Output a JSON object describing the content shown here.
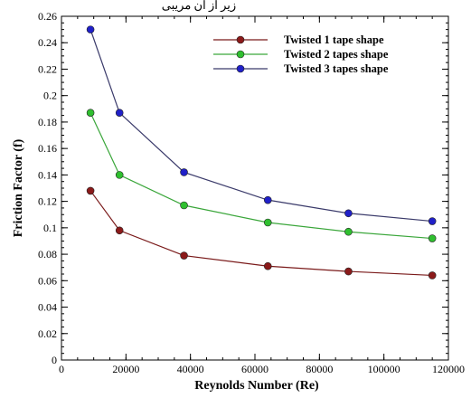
{
  "top_text": "زیر از آن مریبی",
  "chart_data": {
    "type": "line",
    "title": "",
    "xlabel": "Reynolds Number (Re)",
    "ylabel": "Friction Factor (f)",
    "xlim": [
      0,
      120000
    ],
    "ylim": [
      0,
      0.26
    ],
    "x_ticks": [
      0,
      20000,
      40000,
      60000,
      80000,
      100000,
      120000
    ],
    "y_ticks": [
      0,
      0.02,
      0.04,
      0.06,
      0.08,
      0.1,
      0.12,
      0.14,
      0.16,
      0.18,
      0.2,
      0.22,
      0.24,
      0.26
    ],
    "x_tick_labels": [
      "0",
      "20000",
      "40000",
      "60000",
      "80000",
      "100000",
      "120000"
    ],
    "y_tick_labels": [
      "0",
      "0.02",
      "0.04",
      "0.06",
      "0.08",
      "0.1",
      "0.12",
      "0.14",
      "0.16",
      "0.18",
      "0.2",
      "0.22",
      "0.24",
      "0.26"
    ],
    "grid": false,
    "legend_position": "top-right",
    "x": [
      9000,
      18000,
      38000,
      64000,
      89000,
      115000
    ],
    "series": [
      {
        "name": "Twisted 1 tape shape",
        "marker_color": "#8b1a1a",
        "line_color": "#7a1a1a",
        "values": [
          0.128,
          0.098,
          0.079,
          0.071,
          0.067,
          0.064
        ]
      },
      {
        "name": "Twisted 2 tapes shape",
        "marker_color": "#2fbf2f",
        "line_color": "#3aa63a",
        "values": [
          0.187,
          0.14,
          0.117,
          0.104,
          0.097,
          0.092
        ]
      },
      {
        "name": "Twisted 3 tapes shape",
        "marker_color": "#2020c8",
        "line_color": "#3a3a6a",
        "values": [
          0.25,
          0.187,
          0.142,
          0.121,
          0.111,
          0.105
        ]
      }
    ]
  }
}
